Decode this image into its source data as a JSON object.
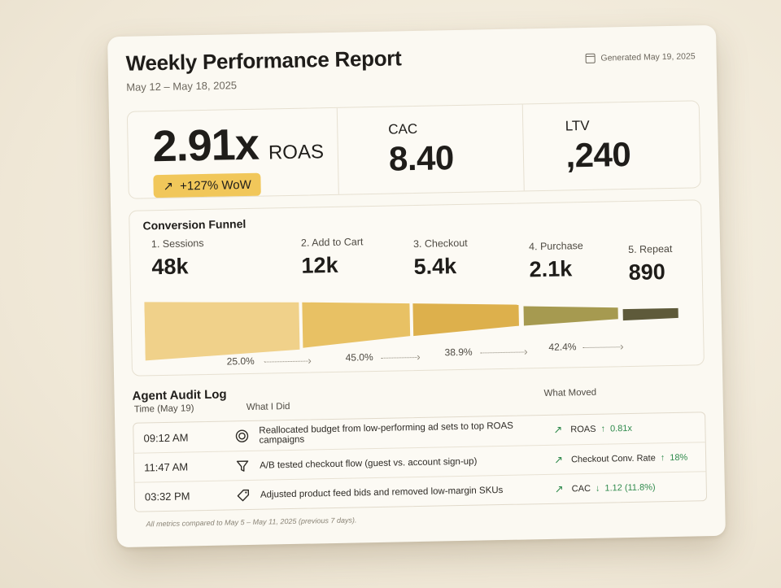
{
  "report": {
    "title": "Weekly Performance Report",
    "date_range": "May 12 – May 18, 2025",
    "generated": "Generated May 19, 2025"
  },
  "kpis": {
    "roas": {
      "value": "2.91x",
      "label": "ROAS",
      "wow": "+127% WoW"
    },
    "cac": {
      "label": "CAC",
      "value": "8.40"
    },
    "ltv": {
      "label": "LTV",
      "value": ",240"
    }
  },
  "funnel": {
    "title": "Conversion Funnel",
    "stages": [
      {
        "label": "1. Sessions",
        "value": "48k",
        "color": "#f0d18a"
      },
      {
        "label": "2. Add to Cart",
        "value": "12k",
        "color": "#e8c164"
      },
      {
        "label": "3. Checkout",
        "value": "5.4k",
        "color": "#ddb04c"
      },
      {
        "label": "4. Purchase",
        "value": "2.1k",
        "color": "#a69a50"
      },
      {
        "label": "5. Repeat",
        "value": "890",
        "color": "#5e5a3a"
      }
    ],
    "rates": [
      "25.0%",
      "45.0%",
      "38.9%",
      "42.4%"
    ]
  },
  "audit": {
    "title": "Agent Audit Log",
    "headers": {
      "time": "Time (May 19)",
      "what": "What I Did",
      "moved": "What Moved"
    },
    "rows": [
      {
        "time": "09:12 AM",
        "icon": "target-icon",
        "what": "Reallocated budget from low-performing ad sets to top ROAS campaigns",
        "metric": "ROAS",
        "dir": "↑",
        "delta": "0.81x"
      },
      {
        "time": "11:47 AM",
        "icon": "funnel-icon",
        "what": "A/B tested checkout flow (guest vs. account sign-up)",
        "metric": "Checkout Conv. Rate",
        "dir": "↑",
        "delta": "18%"
      },
      {
        "time": "03:32 PM",
        "icon": "tag-icon",
        "what": "Adjusted product feed bids and removed low-margin SKUs",
        "metric": "CAC",
        "dir": "↓",
        "delta": "1.12 (11.8%)"
      }
    ],
    "footnote": "All metrics compared to May 5 – May 11, 2025 (previous 7 days)."
  }
}
